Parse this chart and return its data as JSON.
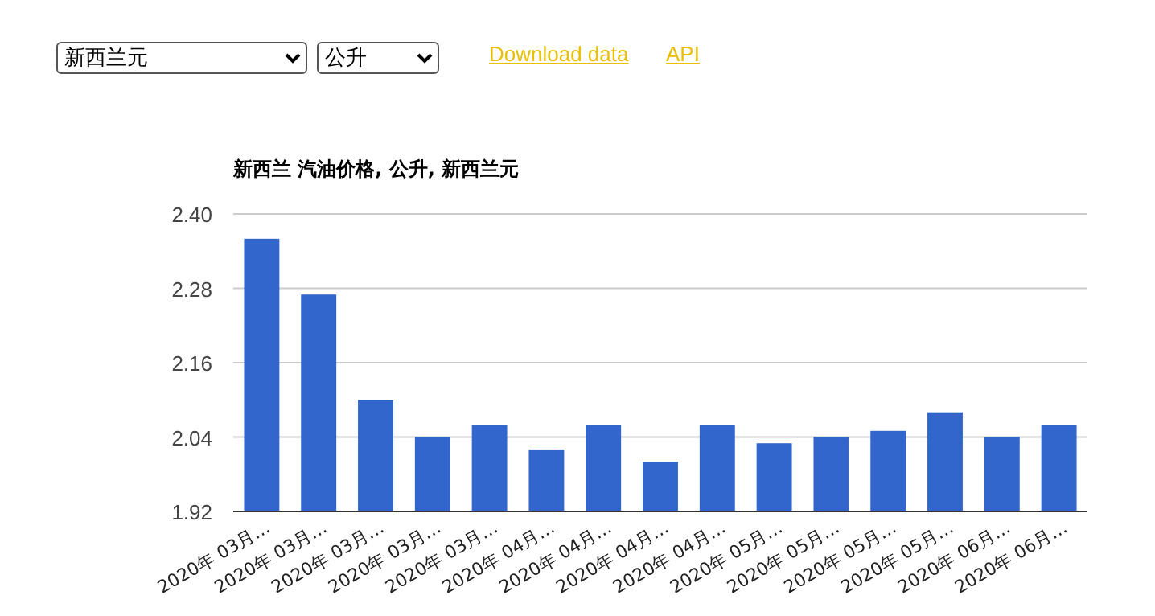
{
  "chart_data": {
    "type": "bar",
    "title": "新西兰 汽油价格, 公升, 新西兰元",
    "categories": [
      "2020年 03月…",
      "2020年 03月…",
      "2020年 03月…",
      "2020年 03月…",
      "2020年 03月…",
      "2020年 04月…",
      "2020年 04月…",
      "2020年 04月…",
      "2020年 04月…",
      "2020年 05月…",
      "2020年 05月…",
      "2020年 05月…",
      "2020年 05月…",
      "2020年 06月…",
      "2020年 06月…"
    ],
    "values": [
      2.36,
      2.27,
      2.1,
      2.04,
      2.06,
      2.02,
      2.06,
      2.0,
      2.06,
      2.03,
      2.04,
      2.05,
      2.08,
      2.04,
      2.06
    ],
    "color": "#3366cc",
    "ylim": [
      1.92,
      2.4
    ],
    "yticks": [
      {
        "value": 1.92,
        "label": "1.92"
      },
      {
        "value": 2.04,
        "label": "2.04"
      },
      {
        "value": 2.16,
        "label": "2.16"
      },
      {
        "value": 2.28,
        "label": "2.28"
      },
      {
        "value": 2.4,
        "label": "2.40"
      }
    ],
    "grid": "y",
    "annotations": [
      "新西兰元",
      "公升",
      "Download data",
      "API"
    ]
  }
}
